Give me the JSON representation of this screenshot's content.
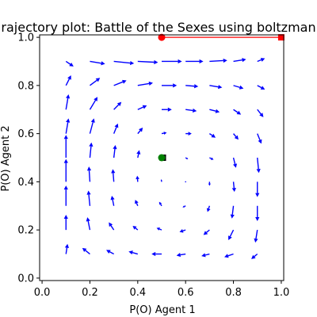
{
  "chart_data": {
    "type": "quiver",
    "title": "rajectory plot: Battle of the Sexes using boltzman",
    "xlabel": "P(O) Agent 1",
    "ylabel": "P(O) Agent 2",
    "xlim": [
      0.0,
      1.0
    ],
    "ylim": [
      0.0,
      1.0
    ],
    "xticks": [
      "0.0",
      "0.2",
      "0.4",
      "0.6",
      "0.8",
      "1.0"
    ],
    "yticks": [
      "0.0",
      "0.2",
      "0.4",
      "0.6",
      "0.8",
      "1.0"
    ],
    "grid": false,
    "arrow_color": "#0000ff",
    "trajectory_color": "#ff0000",
    "start_marker_color": "#008000",
    "end_marker_color": "#000000",
    "field": [
      {
        "x": 0.1,
        "y": 0.1,
        "u": 0.003,
        "v": 0.02
      },
      {
        "x": 0.2,
        "y": 0.1,
        "u": -0.015,
        "v": 0.012
      },
      {
        "x": 0.3,
        "y": 0.1,
        "u": -0.015,
        "v": 0.008
      },
      {
        "x": 0.4,
        "y": 0.1,
        "u": -0.018,
        "v": 0.005
      },
      {
        "x": 0.5,
        "y": 0.1,
        "u": -0.02,
        "v": 0.0
      },
      {
        "x": 0.6,
        "y": 0.1,
        "u": -0.018,
        "v": -0.003
      },
      {
        "x": 0.7,
        "y": 0.1,
        "u": -0.016,
        "v": -0.004
      },
      {
        "x": 0.8,
        "y": 0.1,
        "u": -0.018,
        "v": -0.006
      },
      {
        "x": 0.9,
        "y": 0.1,
        "u": -0.012,
        "v": -0.01
      },
      {
        "x": 0.1,
        "y": 0.2,
        "u": 0.0,
        "v": 0.03
      },
      {
        "x": 0.2,
        "y": 0.2,
        "u": -0.005,
        "v": 0.025
      },
      {
        "x": 0.3,
        "y": 0.2,
        "u": -0.01,
        "v": 0.015
      },
      {
        "x": 0.4,
        "y": 0.2,
        "u": -0.01,
        "v": 0.008
      },
      {
        "x": 0.5,
        "y": 0.2,
        "u": -0.01,
        "v": 0.004
      },
      {
        "x": 0.6,
        "y": 0.2,
        "u": -0.012,
        "v": -0.004
      },
      {
        "x": 0.7,
        "y": 0.2,
        "u": -0.012,
        "v": -0.01
      },
      {
        "x": 0.8,
        "y": 0.2,
        "u": -0.01,
        "v": -0.02
      },
      {
        "x": 0.9,
        "y": 0.2,
        "u": -0.004,
        "v": -0.025
      },
      {
        "x": 0.1,
        "y": 0.3,
        "u": 0.0,
        "v": 0.04
      },
      {
        "x": 0.2,
        "y": 0.3,
        "u": -0.003,
        "v": 0.03
      },
      {
        "x": 0.3,
        "y": 0.3,
        "u": -0.004,
        "v": 0.02
      },
      {
        "x": 0.4,
        "y": 0.3,
        "u": -0.005,
        "v": 0.012
      },
      {
        "x": 0.5,
        "y": 0.3,
        "u": -0.005,
        "v": 0.008
      },
      {
        "x": 0.6,
        "y": 0.3,
        "u": -0.006,
        "v": -0.003
      },
      {
        "x": 0.7,
        "y": 0.3,
        "u": -0.004,
        "v": -0.012
      },
      {
        "x": 0.8,
        "y": 0.3,
        "u": -0.003,
        "v": -0.025
      },
      {
        "x": 0.9,
        "y": 0.3,
        "u": 0.0,
        "v": -0.03
      },
      {
        "x": 0.1,
        "y": 0.4,
        "u": 0.0,
        "v": 0.045
      },
      {
        "x": 0.2,
        "y": 0.4,
        "u": -0.002,
        "v": 0.03
      },
      {
        "x": 0.3,
        "y": 0.4,
        "u": -0.002,
        "v": 0.025
      },
      {
        "x": 0.4,
        "y": 0.4,
        "u": -0.001,
        "v": 0.012
      },
      {
        "x": 0.5,
        "y": 0.4,
        "u": -0.001,
        "v": 0.005
      },
      {
        "x": 0.6,
        "y": 0.4,
        "u": 0.0,
        "v": 0.0
      },
      {
        "x": 0.7,
        "y": 0.4,
        "u": 0.0,
        "v": -0.008
      },
      {
        "x": 0.8,
        "y": 0.4,
        "u": 0.002,
        "v": -0.02
      },
      {
        "x": 0.9,
        "y": 0.4,
        "u": 0.0,
        "v": -0.03
      },
      {
        "x": 0.1,
        "y": 0.5,
        "u": 0.0,
        "v": 0.045
      },
      {
        "x": 0.2,
        "y": 0.5,
        "u": 0.003,
        "v": 0.03
      },
      {
        "x": 0.3,
        "y": 0.5,
        "u": 0.003,
        "v": 0.025
      },
      {
        "x": 0.4,
        "y": 0.5,
        "u": 0.003,
        "v": 0.015
      },
      {
        "x": 0.5,
        "y": 0.5,
        "u": 0.0,
        "v": 0.0
      },
      {
        "x": 0.6,
        "y": 0.5,
        "u": 0.005,
        "v": -0.003
      },
      {
        "x": 0.7,
        "y": 0.5,
        "u": 0.008,
        "v": -0.004
      },
      {
        "x": 0.8,
        "y": 0.5,
        "u": 0.005,
        "v": -0.02
      },
      {
        "x": 0.9,
        "y": 0.5,
        "u": 0.003,
        "v": -0.03
      },
      {
        "x": 0.1,
        "y": 0.6,
        "u": 0.005,
        "v": 0.03
      },
      {
        "x": 0.2,
        "y": 0.6,
        "u": 0.008,
        "v": 0.03
      },
      {
        "x": 0.3,
        "y": 0.6,
        "u": 0.008,
        "v": 0.02
      },
      {
        "x": 0.4,
        "y": 0.6,
        "u": 0.01,
        "v": 0.012
      },
      {
        "x": 0.5,
        "y": 0.6,
        "u": 0.01,
        "v": 0.002
      },
      {
        "x": 0.6,
        "y": 0.6,
        "u": 0.012,
        "v": 0.0
      },
      {
        "x": 0.7,
        "y": 0.6,
        "u": 0.012,
        "v": -0.008
      },
      {
        "x": 0.8,
        "y": 0.6,
        "u": 0.01,
        "v": -0.012
      },
      {
        "x": 0.9,
        "y": 0.6,
        "u": 0.008,
        "v": -0.02
      },
      {
        "x": 0.1,
        "y": 0.7,
        "u": 0.005,
        "v": 0.03
      },
      {
        "x": 0.2,
        "y": 0.7,
        "u": 0.015,
        "v": 0.025
      },
      {
        "x": 0.3,
        "y": 0.7,
        "u": 0.015,
        "v": 0.015
      },
      {
        "x": 0.4,
        "y": 0.7,
        "u": 0.018,
        "v": 0.008
      },
      {
        "x": 0.5,
        "y": 0.7,
        "u": 0.02,
        "v": 0.0
      },
      {
        "x": 0.6,
        "y": 0.7,
        "u": 0.022,
        "v": -0.003
      },
      {
        "x": 0.7,
        "y": 0.7,
        "u": 0.02,
        "v": -0.005
      },
      {
        "x": 0.8,
        "y": 0.7,
        "u": 0.015,
        "v": -0.01
      },
      {
        "x": 0.9,
        "y": 0.7,
        "u": 0.012,
        "v": -0.015
      },
      {
        "x": 0.1,
        "y": 0.8,
        "u": 0.01,
        "v": 0.02
      },
      {
        "x": 0.2,
        "y": 0.8,
        "u": 0.02,
        "v": 0.015
      },
      {
        "x": 0.3,
        "y": 0.8,
        "u": 0.025,
        "v": 0.01
      },
      {
        "x": 0.4,
        "y": 0.8,
        "u": 0.03,
        "v": 0.005
      },
      {
        "x": 0.5,
        "y": 0.8,
        "u": 0.03,
        "v": 0.0
      },
      {
        "x": 0.6,
        "y": 0.8,
        "u": 0.025,
        "v": -0.002
      },
      {
        "x": 0.7,
        "y": 0.8,
        "u": 0.025,
        "v": -0.004
      },
      {
        "x": 0.8,
        "y": 0.8,
        "u": 0.02,
        "v": -0.006
      },
      {
        "x": 0.9,
        "y": 0.8,
        "u": 0.015,
        "v": -0.008
      },
      {
        "x": 0.1,
        "y": 0.9,
        "u": 0.015,
        "v": -0.01
      },
      {
        "x": 0.2,
        "y": 0.9,
        "u": 0.03,
        "v": -0.005
      },
      {
        "x": 0.3,
        "y": 0.9,
        "u": 0.04,
        "v": -0.004
      },
      {
        "x": 0.4,
        "y": 0.9,
        "u": 0.04,
        "v": -0.002
      },
      {
        "x": 0.5,
        "y": 0.9,
        "u": 0.04,
        "v": 0.0
      },
      {
        "x": 0.6,
        "y": 0.9,
        "u": 0.035,
        "v": 0.0
      },
      {
        "x": 0.7,
        "y": 0.9,
        "u": 0.035,
        "v": 0.002
      },
      {
        "x": 0.8,
        "y": 0.9,
        "u": 0.025,
        "v": 0.004
      },
      {
        "x": 0.9,
        "y": 0.9,
        "u": 0.015,
        "v": 0.006
      }
    ],
    "trajectory": [
      {
        "x": 0.5,
        "y": 1.0
      },
      {
        "x": 1.0,
        "y": 1.0
      }
    ],
    "trajectory_markers": [
      {
        "x": 0.5,
        "y": 1.0,
        "color": "#ff0000",
        "shape": "circle"
      },
      {
        "x": 1.0,
        "y": 1.0,
        "color": "#ff0000",
        "shape": "square"
      }
    ],
    "start_point": {
      "x": 0.5,
      "y": 0.5
    },
    "end_point": {
      "x": 0.505,
      "y": 0.5
    }
  }
}
